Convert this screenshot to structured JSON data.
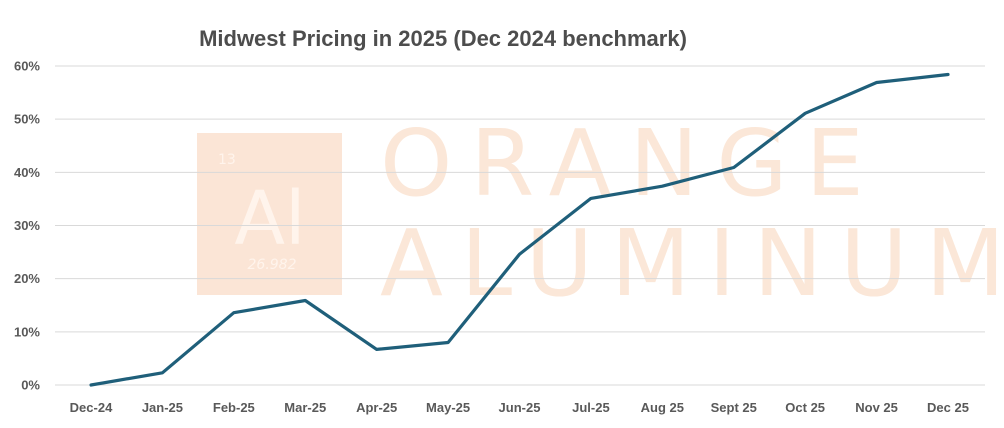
{
  "watermark": {
    "brand_line1": "ORANGE",
    "brand_line2": "ALUMINUM",
    "element_number": "13",
    "element_symbol": "Al",
    "atomic_mass": "26.982",
    "box_color": "#fbe5d6",
    "text_color": "#fbe7d8"
  },
  "colors": {
    "line": "#1f5f7a",
    "grid": "#d9d9d9",
    "title": "#4d4d4d",
    "axis_text": "#595959"
  },
  "chart_data": {
    "type": "line",
    "title": "Midwest Pricing in 2025 (Dec 2024 benchmark)",
    "xlabel": "",
    "ylabel": "",
    "categories": [
      "Dec-24",
      "Jan-25",
      "Feb-25",
      "Mar-25",
      "Apr-25",
      "May-25",
      "Jun-25",
      "Jul-25",
      "Aug 25",
      "Sept 25",
      "Oct 25",
      "Nov 25",
      "Dec 25"
    ],
    "series": [
      {
        "name": "Midwest Pricing",
        "values": [
          0.0,
          2.3,
          13.6,
          15.9,
          6.7,
          8.0,
          24.6,
          35.1,
          37.4,
          40.9,
          51.1,
          56.9,
          58.4
        ]
      }
    ],
    "ylim": [
      0,
      60
    ],
    "yticks": [
      0,
      10,
      20,
      30,
      40,
      50,
      60
    ],
    "ytick_labels": [
      "0%",
      "10%",
      "20%",
      "30%",
      "40%",
      "50%",
      "60%"
    ],
    "grid": true,
    "legend": "none"
  }
}
